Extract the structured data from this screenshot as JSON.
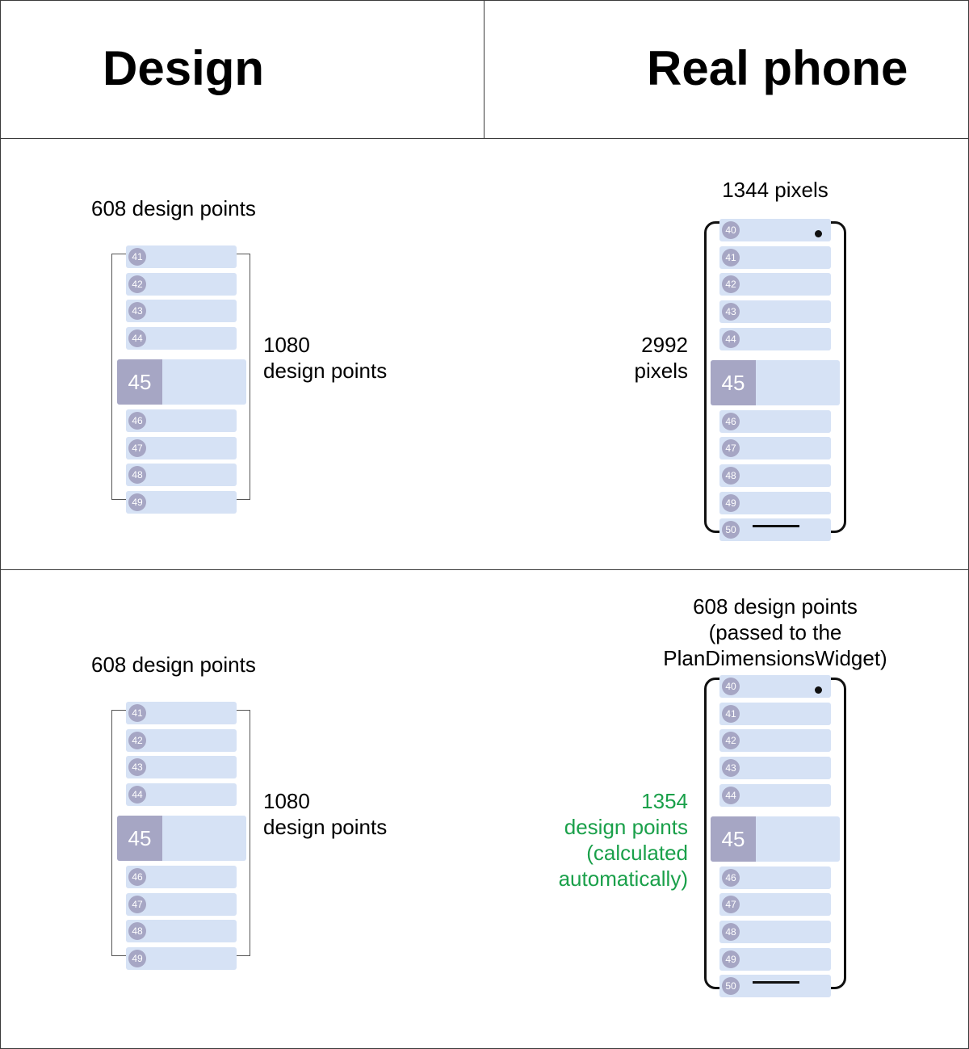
{
  "headers": {
    "design": "Design",
    "real_phone": "Real phone"
  },
  "row1": {
    "design_width": "608 design points",
    "design_height_line1": "1080",
    "design_height_line2": "design points",
    "phone_width": "1344 pixels",
    "phone_height_line1": "2992",
    "phone_height_line2": "pixels"
  },
  "row2": {
    "design_width": "608 design points",
    "design_height_line1": "1080",
    "design_height_line2": "design points",
    "phone_width_line1": "608 design points",
    "phone_width_line2": "(passed to the",
    "phone_width_line3": "PlanDimensionsWidget)",
    "phone_height_line1": "1354",
    "phone_height_line2": "design points",
    "phone_height_line3": "(calculated",
    "phone_height_line4": "automatically)"
  },
  "design_list": [
    "41",
    "42",
    "43",
    "44",
    "45",
    "46",
    "47",
    "48",
    "49"
  ],
  "phone_list": [
    "40",
    "41",
    "42",
    "43",
    "44",
    "45",
    "46",
    "47",
    "48",
    "49",
    "50"
  ],
  "highlight_item": "45",
  "colors": {
    "item_bg": "#d6e2f5",
    "badge_bg": "#a6a6c4",
    "highlight_text": "#1aa04a"
  }
}
